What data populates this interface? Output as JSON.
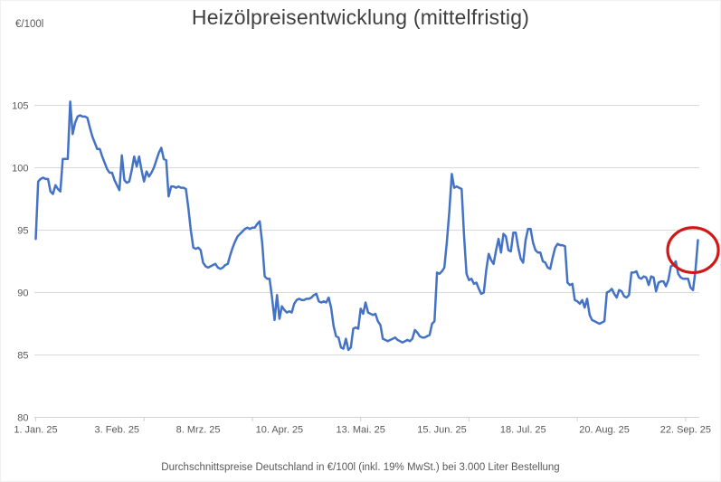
{
  "title": "Heizölpreisentwicklung (mittelfristig)",
  "y_axis_unit_label": "€/100l",
  "caption": "Durchschnittspreise Deutschland in €/100l (inkl. 19% MwSt.) bei 3.000 Liter Bestellung",
  "colors": {
    "line": "#4472c4",
    "grid": "#d9d9d9",
    "axis": "#d2d2d2",
    "tick_text": "#595959",
    "title_text": "#3f3f3f",
    "annotation": "#d01818",
    "background": "#ffffff"
  },
  "chart_data": {
    "type": "line",
    "title": "Heizölpreisentwicklung (mittelfristig)",
    "xlabel": "",
    "ylabel": "€/100l",
    "ylim": [
      80,
      105
    ],
    "y_ticks": [
      80,
      85,
      90,
      95,
      100,
      105
    ],
    "grid": "horizontal",
    "legend": "none",
    "x_axis": {
      "unit": "daily values, days since first label",
      "range": [
        0,
        269
      ],
      "tick_labels": [
        {
          "day": 0,
          "label": "1. Jan. 25"
        },
        {
          "day": 33,
          "label": "3. Feb. 25"
        },
        {
          "day": 66,
          "label": "8. Mrz. 25"
        },
        {
          "day": 99,
          "label": "10. Apr. 25"
        },
        {
          "day": 132,
          "label": "13. Mai. 25"
        },
        {
          "day": 165,
          "label": "15. Jun. 25"
        },
        {
          "day": 198,
          "label": "18. Jul. 25"
        },
        {
          "day": 231,
          "label": "20. Aug. 25"
        },
        {
          "day": 264,
          "label": "22. Sep. 25"
        }
      ],
      "tick_mark_days": [
        0,
        44,
        88,
        132,
        176,
        220,
        264
      ]
    },
    "series": [
      {
        "points": [
          [
            0,
            94.3
          ],
          [
            1,
            98.9
          ],
          [
            2,
            99.1
          ],
          [
            3,
            99.2
          ],
          [
            4,
            99.1
          ],
          [
            5,
            99.1
          ],
          [
            6,
            98.1
          ],
          [
            7,
            97.9
          ],
          [
            8,
            98.6
          ],
          [
            9,
            98.3
          ],
          [
            10,
            98.1
          ],
          [
            11,
            100.7
          ],
          [
            12,
            100.7
          ],
          [
            13,
            100.7
          ],
          [
            14,
            105.3
          ],
          [
            15,
            102.7
          ],
          [
            16,
            103.6
          ],
          [
            17,
            104.1
          ],
          [
            18,
            104.2
          ],
          [
            19,
            104.1
          ],
          [
            20,
            104.1
          ],
          [
            21,
            104.0
          ],
          [
            22,
            103.2
          ],
          [
            23,
            102.5
          ],
          [
            24,
            102.0
          ],
          [
            25,
            101.5
          ],
          [
            26,
            101.5
          ],
          [
            27,
            100.9
          ],
          [
            28,
            100.4
          ],
          [
            29,
            99.9
          ],
          [
            30,
            99.6
          ],
          [
            31,
            99.6
          ],
          [
            32,
            99.0
          ],
          [
            33,
            98.6
          ],
          [
            34,
            98.2
          ],
          [
            35,
            101.0
          ],
          [
            36,
            99.0
          ],
          [
            37,
            98.8
          ],
          [
            38,
            98.9
          ],
          [
            39,
            99.8
          ],
          [
            40,
            100.9
          ],
          [
            41,
            100.1
          ],
          [
            42,
            100.9
          ],
          [
            43,
            99.8
          ],
          [
            44,
            98.9
          ],
          [
            45,
            99.7
          ],
          [
            46,
            99.3
          ],
          [
            47,
            99.6
          ],
          [
            48,
            100.0
          ],
          [
            49,
            100.6
          ],
          [
            50,
            101.2
          ],
          [
            51,
            101.6
          ],
          [
            52,
            100.7
          ],
          [
            53,
            100.6
          ],
          [
            54,
            97.7
          ],
          [
            55,
            98.5
          ],
          [
            56,
            98.5
          ],
          [
            57,
            98.4
          ],
          [
            58,
            98.5
          ],
          [
            59,
            98.4
          ],
          [
            60,
            98.4
          ],
          [
            61,
            98.3
          ],
          [
            62,
            96.8
          ],
          [
            63,
            95.0
          ],
          [
            64,
            93.6
          ],
          [
            65,
            93.5
          ],
          [
            66,
            93.6
          ],
          [
            67,
            93.4
          ],
          [
            68,
            92.4
          ],
          [
            69,
            92.1
          ],
          [
            70,
            92.0
          ],
          [
            71,
            92.1
          ],
          [
            72,
            92.2
          ],
          [
            73,
            92.3
          ],
          [
            74,
            92.0
          ],
          [
            75,
            91.9
          ],
          [
            76,
            92.0
          ],
          [
            77,
            92.2
          ],
          [
            78,
            92.3
          ],
          [
            79,
            93.0
          ],
          [
            80,
            93.6
          ],
          [
            81,
            94.1
          ],
          [
            82,
            94.5
          ],
          [
            83,
            94.7
          ],
          [
            84,
            94.9
          ],
          [
            85,
            95.1
          ],
          [
            86,
            95.2
          ],
          [
            87,
            95.1
          ],
          [
            88,
            95.2
          ],
          [
            89,
            95.2
          ],
          [
            90,
            95.5
          ],
          [
            91,
            95.7
          ],
          [
            92,
            94.0
          ],
          [
            93,
            91.3
          ],
          [
            94,
            91.1
          ],
          [
            95,
            91.1
          ],
          [
            96,
            89.6
          ],
          [
            97,
            87.8
          ],
          [
            98,
            89.8
          ],
          [
            99,
            87.9
          ],
          [
            100,
            88.9
          ],
          [
            101,
            88.6
          ],
          [
            102,
            88.4
          ],
          [
            103,
            88.5
          ],
          [
            104,
            88.4
          ],
          [
            105,
            89.1
          ],
          [
            106,
            89.4
          ],
          [
            107,
            89.5
          ],
          [
            108,
            89.4
          ],
          [
            109,
            89.4
          ],
          [
            110,
            89.5
          ],
          [
            111,
            89.5
          ],
          [
            112,
            89.6
          ],
          [
            113,
            89.8
          ],
          [
            114,
            89.9
          ],
          [
            115,
            89.3
          ],
          [
            116,
            89.2
          ],
          [
            117,
            89.3
          ],
          [
            118,
            89.2
          ],
          [
            119,
            89.6
          ],
          [
            120,
            88.8
          ],
          [
            121,
            87.3
          ],
          [
            122,
            86.5
          ],
          [
            123,
            86.4
          ],
          [
            124,
            85.6
          ],
          [
            125,
            85.5
          ],
          [
            126,
            86.3
          ],
          [
            127,
            85.4
          ],
          [
            128,
            85.6
          ],
          [
            129,
            87.1
          ],
          [
            130,
            87.2
          ],
          [
            131,
            87.1
          ],
          [
            132,
            88.7
          ],
          [
            133,
            88.3
          ],
          [
            134,
            89.2
          ],
          [
            135,
            88.4
          ],
          [
            136,
            88.3
          ],
          [
            137,
            88.2
          ],
          [
            138,
            88.3
          ],
          [
            139,
            87.7
          ],
          [
            140,
            87.4
          ],
          [
            141,
            86.3
          ],
          [
            142,
            86.2
          ],
          [
            143,
            86.1
          ],
          [
            144,
            86.2
          ],
          [
            145,
            86.3
          ],
          [
            146,
            86.4
          ],
          [
            147,
            86.2
          ],
          [
            148,
            86.1
          ],
          [
            149,
            86.0
          ],
          [
            150,
            86.1
          ],
          [
            151,
            86.2
          ],
          [
            152,
            86.1
          ],
          [
            153,
            86.3
          ],
          [
            154,
            87.0
          ],
          [
            155,
            86.8
          ],
          [
            156,
            86.5
          ],
          [
            157,
            86.4
          ],
          [
            158,
            86.4
          ],
          [
            159,
            86.5
          ],
          [
            160,
            86.6
          ],
          [
            161,
            87.5
          ],
          [
            162,
            87.7
          ],
          [
            163,
            91.6
          ],
          [
            164,
            91.5
          ],
          [
            165,
            91.7
          ],
          [
            166,
            92.0
          ],
          [
            167,
            94.0
          ],
          [
            168,
            96.5
          ],
          [
            169,
            99.5
          ],
          [
            170,
            98.4
          ],
          [
            171,
            98.5
          ],
          [
            172,
            98.4
          ],
          [
            173,
            98.3
          ],
          [
            174,
            94.5
          ],
          [
            175,
            91.5
          ],
          [
            176,
            91.0
          ],
          [
            177,
            91.1
          ],
          [
            178,
            90.7
          ],
          [
            179,
            90.8
          ],
          [
            180,
            90.3
          ],
          [
            181,
            89.9
          ],
          [
            182,
            90.0
          ],
          [
            183,
            91.8
          ],
          [
            184,
            93.1
          ],
          [
            185,
            92.6
          ],
          [
            186,
            92.3
          ],
          [
            187,
            93.4
          ],
          [
            188,
            94.3
          ],
          [
            189,
            93.2
          ],
          [
            190,
            94.7
          ],
          [
            191,
            94.5
          ],
          [
            192,
            93.4
          ],
          [
            193,
            93.3
          ],
          [
            194,
            94.8
          ],
          [
            195,
            94.8
          ],
          [
            196,
            93.6
          ],
          [
            197,
            92.7
          ],
          [
            198,
            92.4
          ],
          [
            199,
            94.2
          ],
          [
            200,
            95.1
          ],
          [
            201,
            95.1
          ],
          [
            202,
            94.0
          ],
          [
            203,
            93.4
          ],
          [
            204,
            93.2
          ],
          [
            205,
            93.2
          ],
          [
            206,
            92.5
          ],
          [
            207,
            92.4
          ],
          [
            208,
            92.0
          ],
          [
            209,
            91.9
          ],
          [
            210,
            92.8
          ],
          [
            211,
            93.6
          ],
          [
            212,
            93.9
          ],
          [
            213,
            93.8
          ],
          [
            214,
            93.8
          ],
          [
            215,
            93.7
          ],
          [
            216,
            90.8
          ],
          [
            217,
            90.6
          ],
          [
            218,
            90.7
          ],
          [
            219,
            89.4
          ],
          [
            220,
            89.3
          ],
          [
            221,
            89.1
          ],
          [
            222,
            89.4
          ],
          [
            223,
            88.8
          ],
          [
            224,
            89.5
          ],
          [
            225,
            88.2
          ],
          [
            226,
            87.8
          ],
          [
            227,
            87.7
          ],
          [
            228,
            87.6
          ],
          [
            229,
            87.5
          ],
          [
            230,
            87.6
          ],
          [
            231,
            87.7
          ],
          [
            232,
            90.0
          ],
          [
            233,
            90.1
          ],
          [
            234,
            90.3
          ],
          [
            235,
            89.9
          ],
          [
            236,
            89.6
          ],
          [
            237,
            90.2
          ],
          [
            238,
            90.1
          ],
          [
            239,
            89.7
          ],
          [
            240,
            89.6
          ],
          [
            241,
            89.8
          ],
          [
            242,
            91.6
          ],
          [
            243,
            91.6
          ],
          [
            244,
            91.7
          ],
          [
            245,
            91.2
          ],
          [
            246,
            91.1
          ],
          [
            247,
            91.3
          ],
          [
            248,
            91.2
          ],
          [
            249,
            90.6
          ],
          [
            250,
            91.3
          ],
          [
            251,
            91.2
          ],
          [
            252,
            90.1
          ],
          [
            253,
            90.8
          ],
          [
            254,
            90.9
          ],
          [
            255,
            90.9
          ],
          [
            256,
            90.5
          ],
          [
            257,
            91.0
          ],
          [
            258,
            92.1
          ],
          [
            259,
            92.2
          ],
          [
            260,
            92.5
          ],
          [
            261,
            91.5
          ],
          [
            262,
            91.2
          ],
          [
            263,
            91.1
          ],
          [
            264,
            91.1
          ],
          [
            265,
            91.1
          ],
          [
            266,
            90.4
          ],
          [
            267,
            90.2
          ],
          [
            268,
            91.8
          ],
          [
            269,
            94.2
          ]
        ]
      }
    ],
    "annotation": {
      "shape": "ellipse",
      "center_day": 267,
      "center_value": 93.4,
      "radius_days": 10.3,
      "radius_value": 1.8,
      "color": "#d01818"
    }
  }
}
